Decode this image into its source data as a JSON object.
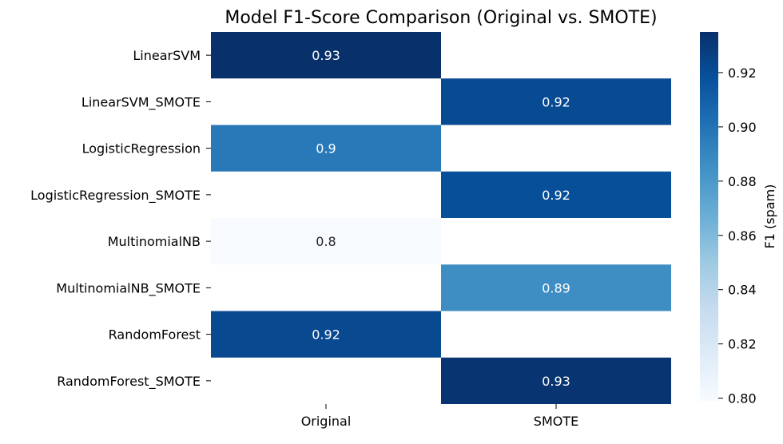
{
  "chart_data": {
    "type": "heatmap",
    "title": "Model F1-Score Comparison (Original vs. SMOTE)",
    "columns": [
      "Original",
      "SMOTE"
    ],
    "rows": [
      "LinearSVM",
      "LinearSVM_SMOTE",
      "LogisticRegression",
      "LogisticRegression_SMOTE",
      "MultinomialNB",
      "MultinomialNB_SMOTE",
      "RandomForest",
      "RandomForest_SMOTE"
    ],
    "values": [
      [
        0.935,
        null
      ],
      [
        null,
        0.921
      ],
      [
        0.897,
        null
      ],
      [
        null,
        0.919
      ],
      [
        0.799,
        null
      ],
      [
        null,
        0.886
      ],
      [
        0.922,
        null
      ],
      [
        null,
        0.933
      ]
    ],
    "annotations": [
      [
        "0.93",
        ""
      ],
      [
        "",
        "0.92"
      ],
      [
        "0.9",
        ""
      ],
      [
        "",
        "0.92"
      ],
      [
        "0.8",
        ""
      ],
      [
        "",
        "0.89"
      ],
      [
        "0.92",
        ""
      ],
      [
        "",
        "0.93"
      ]
    ],
    "colormap": "Blues",
    "colorbar": {
      "label": "F1 (spam)",
      "range": [
        0.799,
        0.935
      ],
      "ticks": [
        0.8,
        0.82,
        0.84,
        0.86,
        0.88,
        0.9,
        0.92
      ],
      "tick_labels": [
        "0.80",
        "0.82",
        "0.84",
        "0.86",
        "0.88",
        "0.90",
        "0.92"
      ]
    },
    "grid": false
  }
}
